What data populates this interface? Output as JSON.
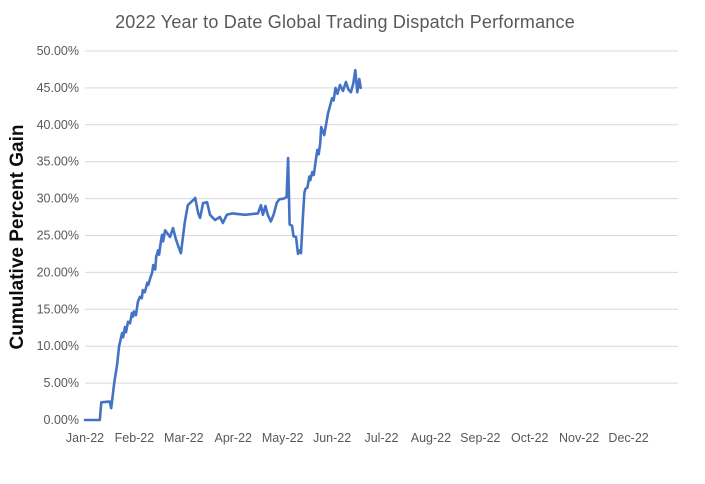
{
  "colors": {
    "background": "#FFFFFF",
    "line": "#4472C4",
    "title_text": "#595959",
    "tick_text": "#595959",
    "axis_title_text": "#0D0D0D",
    "gridline": "#D9D9D9"
  },
  "chart_data": {
    "type": "line",
    "title": "2022 Year to Date Global Trading Dispatch Performance",
    "xlabel": "",
    "ylabel": "Cumulative Percent Gain",
    "x_unit": "months since Jan-2022 tick (0 = Jan-22, 11 = Dec-22)",
    "xlim": [
      0,
      12
    ],
    "ylim": [
      0,
      50
    ],
    "grid": "horizontal gridlines at every 5% from 5% to 50%, no 0% axis line, no vertical gridlines",
    "legend": "none",
    "x_ticks": [
      {
        "value": 0,
        "label": "Jan-22"
      },
      {
        "value": 1,
        "label": "Feb-22"
      },
      {
        "value": 2,
        "label": "Mar-22"
      },
      {
        "value": 3,
        "label": "Apr-22"
      },
      {
        "value": 4,
        "label": "May-22"
      },
      {
        "value": 5,
        "label": "Jun-22"
      },
      {
        "value": 6,
        "label": "Jul-22"
      },
      {
        "value": 7,
        "label": "Aug-22"
      },
      {
        "value": 8,
        "label": "Sep-22"
      },
      {
        "value": 9,
        "label": "Oct-22"
      },
      {
        "value": 10,
        "label": "Nov-22"
      },
      {
        "value": 11,
        "label": "Dec-22"
      }
    ],
    "y_ticks": [
      {
        "value": 0,
        "label": "0.00%"
      },
      {
        "value": 5,
        "label": "5.00%"
      },
      {
        "value": 10,
        "label": "10.00%"
      },
      {
        "value": 15,
        "label": "15.00%"
      },
      {
        "value": 20,
        "label": "20.00%"
      },
      {
        "value": 25,
        "label": "25.00%"
      },
      {
        "value": 30,
        "label": "30.00%"
      },
      {
        "value": 35,
        "label": "35.00%"
      },
      {
        "value": 40,
        "label": "40.00%"
      },
      {
        "value": 45,
        "label": "45.00%"
      },
      {
        "value": 50,
        "label": "50.00%"
      }
    ],
    "series": [
      {
        "name": "Cumulative Percent Gain",
        "color": "#4472C4",
        "points": [
          [
            0.0,
            0.0
          ],
          [
            0.3,
            0.0
          ],
          [
            0.33,
            2.4
          ],
          [
            0.5,
            2.5
          ],
          [
            0.53,
            1.6
          ],
          [
            0.59,
            5.0
          ],
          [
            0.65,
            7.5
          ],
          [
            0.69,
            10.0
          ],
          [
            0.75,
            11.8
          ],
          [
            0.77,
            11.2
          ],
          [
            0.81,
            12.6
          ],
          [
            0.83,
            11.9
          ],
          [
            0.87,
            13.3
          ],
          [
            0.91,
            13.1
          ],
          [
            0.95,
            14.5
          ],
          [
            0.97,
            14.0
          ],
          [
            0.99,
            14.7
          ],
          [
            1.03,
            14.2
          ],
          [
            1.07,
            16.0
          ],
          [
            1.11,
            16.7
          ],
          [
            1.15,
            16.5
          ],
          [
            1.17,
            17.6
          ],
          [
            1.21,
            17.3
          ],
          [
            1.26,
            18.6
          ],
          [
            1.28,
            18.3
          ],
          [
            1.32,
            19.2
          ],
          [
            1.36,
            20.0
          ],
          [
            1.38,
            21.0
          ],
          [
            1.42,
            20.4
          ],
          [
            1.44,
            22.1
          ],
          [
            1.48,
            23.0
          ],
          [
            1.5,
            22.4
          ],
          [
            1.54,
            24.4
          ],
          [
            1.56,
            25.1
          ],
          [
            1.58,
            24.2
          ],
          [
            1.62,
            25.7
          ],
          [
            1.72,
            24.8
          ],
          [
            1.78,
            26.0
          ],
          [
            1.84,
            24.5
          ],
          [
            1.88,
            23.7
          ],
          [
            1.94,
            22.6
          ],
          [
            2.02,
            26.8
          ],
          [
            2.08,
            29.1
          ],
          [
            2.19,
            29.8
          ],
          [
            2.23,
            30.1
          ],
          [
            2.29,
            28.0
          ],
          [
            2.33,
            27.4
          ],
          [
            2.39,
            29.4
          ],
          [
            2.47,
            29.5
          ],
          [
            2.53,
            27.8
          ],
          [
            2.63,
            27.1
          ],
          [
            2.73,
            27.5
          ],
          [
            2.79,
            26.7
          ],
          [
            2.87,
            27.8
          ],
          [
            2.98,
            28.0
          ],
          [
            3.24,
            27.8
          ],
          [
            3.5,
            28.0
          ],
          [
            3.56,
            29.1
          ],
          [
            3.6,
            27.8
          ],
          [
            3.65,
            29.0
          ],
          [
            3.7,
            27.8
          ],
          [
            3.76,
            26.9
          ],
          [
            3.82,
            27.9
          ],
          [
            3.88,
            29.4
          ],
          [
            3.93,
            29.9
          ],
          [
            4.02,
            30.0
          ],
          [
            4.08,
            30.2
          ],
          [
            4.11,
            35.5
          ],
          [
            4.14,
            26.5
          ],
          [
            4.19,
            26.3
          ],
          [
            4.22,
            24.9
          ],
          [
            4.27,
            24.8
          ],
          [
            4.31,
            22.5
          ],
          [
            4.34,
            23.0
          ],
          [
            4.37,
            22.6
          ],
          [
            4.41,
            27.5
          ],
          [
            4.44,
            30.8
          ],
          [
            4.46,
            31.3
          ],
          [
            4.5,
            31.5
          ],
          [
            4.54,
            33.0
          ],
          [
            4.56,
            32.5
          ],
          [
            4.6,
            33.6
          ],
          [
            4.63,
            33.2
          ],
          [
            4.67,
            35.2
          ],
          [
            4.7,
            36.6
          ],
          [
            4.73,
            36.0
          ],
          [
            4.76,
            37.5
          ],
          [
            4.78,
            39.7
          ],
          [
            4.84,
            38.6
          ],
          [
            4.92,
            41.6
          ],
          [
            5.0,
            43.6
          ],
          [
            5.03,
            43.3
          ],
          [
            5.07,
            45.0
          ],
          [
            5.11,
            44.2
          ],
          [
            5.16,
            45.4
          ],
          [
            5.22,
            44.6
          ],
          [
            5.28,
            45.8
          ],
          [
            5.33,
            44.8
          ],
          [
            5.38,
            44.4
          ],
          [
            5.43,
            45.6
          ],
          [
            5.47,
            47.4
          ],
          [
            5.51,
            44.4
          ],
          [
            5.55,
            46.2
          ],
          [
            5.58,
            45.0
          ]
        ]
      }
    ]
  }
}
